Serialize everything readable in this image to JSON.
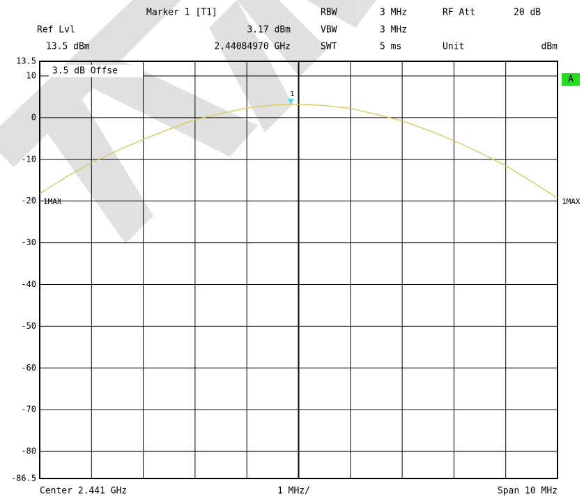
{
  "chart_data": {
    "type": "line",
    "header": {
      "ref_lvl_label": "Ref Lvl",
      "ref_lvl": "13.5 dBm",
      "rbw_label": "RBW",
      "rbw": "3 MHz",
      "vbw_label": "VBW",
      "vbw": "3 MHz",
      "swt_label": "SWT",
      "swt": "5 ms",
      "rf_att_label": "RF Att",
      "rf_att": "20 dB",
      "unit_label": "Unit",
      "unit": "dBm"
    },
    "marker": {
      "label": "Marker 1 [T1]",
      "x": 2.4408497,
      "x_label": "2.44084970 GHz",
      "value": 3.17,
      "value_label": "3.17 dBm",
      "tag": "1",
      "color": "#d4c85a",
      "symbol_color": "#40d8e8"
    },
    "offset_annotation": "3.5 dB Offse",
    "trace_flag": "A",
    "center_label": "Center 2.441 GHz",
    "division_label": "1 MHz/",
    "span_label": "Span 10 MHz",
    "x": [
      2.436,
      2.4365,
      2.437,
      2.4375,
      2.438,
      2.4385,
      2.439,
      2.4395,
      2.44,
      2.4405,
      2.441,
      2.4415,
      2.442,
      2.4425,
      2.443,
      2.4435,
      2.444,
      2.4445,
      2.445,
      2.4455,
      2.446
    ],
    "series": [
      {
        "name": "1MAX",
        "color": "#d4c85a",
        "label_color": "#22cc22",
        "values": [
          -18.2,
          -14.3,
          -10.8,
          -7.9,
          -5.2,
          -2.8,
          -0.5,
          1.0,
          2.3,
          3.0,
          3.2,
          2.9,
          2.2,
          0.8,
          -0.8,
          -3.0,
          -5.5,
          -8.4,
          -11.5,
          -15.3,
          -19.3
        ]
      }
    ],
    "xlim": [
      2.436,
      2.446
    ],
    "xticks": [
      2.436,
      2.437,
      2.438,
      2.439,
      2.44,
      2.441,
      2.442,
      2.443,
      2.444,
      2.445,
      2.446
    ],
    "ylim": [
      -86.5,
      13.5
    ],
    "yticks": [
      13.5,
      10,
      0,
      -10,
      -20,
      -30,
      -40,
      -50,
      -60,
      -70,
      -80,
      -86.5
    ],
    "grid": true
  }
}
